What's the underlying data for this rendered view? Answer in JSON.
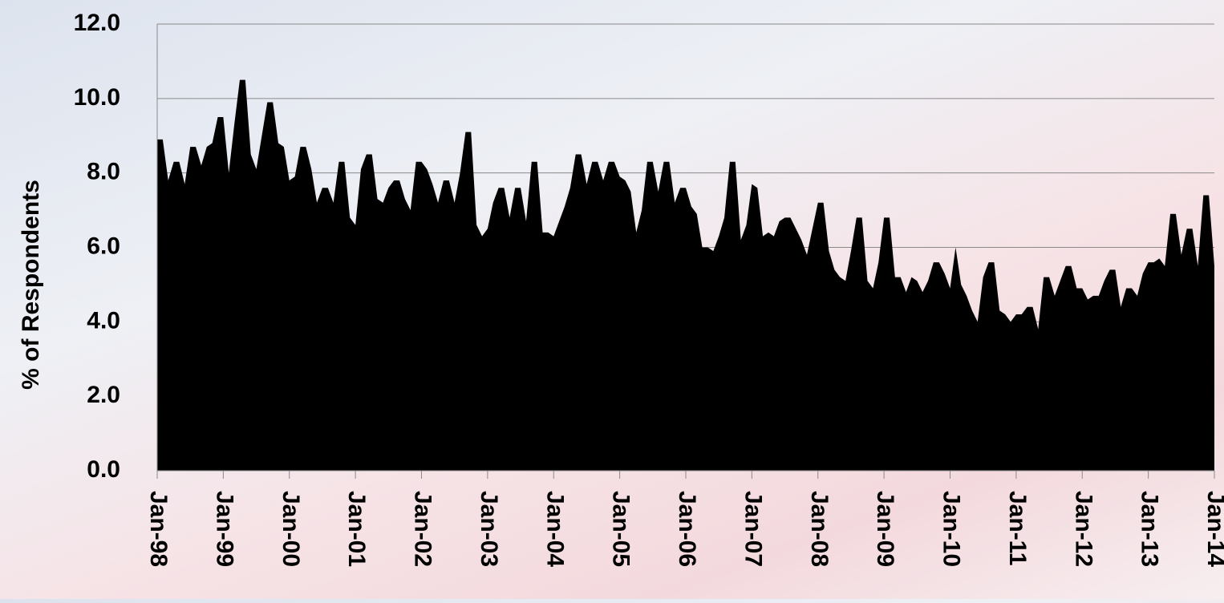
{
  "chart_data": {
    "type": "area",
    "y_label": "% of Respondents",
    "color": "#000000",
    "grid": true,
    "ylim": [
      0,
      12
    ],
    "yticks": [
      {
        "value": 0,
        "label": "0.0"
      },
      {
        "value": 2,
        "label": "2.0"
      },
      {
        "value": 4,
        "label": "4.0"
      },
      {
        "value": 6,
        "label": "6.0"
      },
      {
        "value": 8,
        "label": "8.0"
      },
      {
        "value": 10,
        "label": "10.0"
      },
      {
        "value": 12,
        "label": "12.0"
      }
    ],
    "categories": [
      "Jan-98",
      null,
      null,
      null,
      null,
      null,
      null,
      null,
      null,
      null,
      null,
      null,
      "Jan-99",
      null,
      null,
      null,
      null,
      null,
      null,
      null,
      null,
      null,
      null,
      null,
      "Jan-00",
      null,
      null,
      null,
      null,
      null,
      null,
      null,
      null,
      null,
      null,
      null,
      "Jan-01",
      null,
      null,
      null,
      null,
      null,
      null,
      null,
      null,
      null,
      null,
      null,
      "Jan-02",
      null,
      null,
      null,
      null,
      null,
      null,
      null,
      null,
      null,
      null,
      null,
      "Jan-03",
      null,
      null,
      null,
      null,
      null,
      null,
      null,
      null,
      null,
      null,
      null,
      "Jan-04",
      null,
      null,
      null,
      null,
      null,
      null,
      null,
      null,
      null,
      null,
      null,
      "Jan-05",
      null,
      null,
      null,
      null,
      null,
      null,
      null,
      null,
      null,
      null,
      null,
      "Jan-06",
      null,
      null,
      null,
      null,
      null,
      null,
      null,
      null,
      null,
      null,
      null,
      "Jan-07",
      null,
      null,
      null,
      null,
      null,
      null,
      null,
      null,
      null,
      null,
      null,
      "Jan-08",
      null,
      null,
      null,
      null,
      null,
      null,
      null,
      null,
      null,
      null,
      null,
      "Jan-09",
      null,
      null,
      null,
      null,
      null,
      null,
      null,
      null,
      null,
      null,
      null,
      "Jan-10",
      null,
      null,
      null,
      null,
      null,
      null,
      null,
      null,
      null,
      null,
      null,
      "Jan-11",
      null,
      null,
      null,
      null,
      null,
      null,
      null,
      null,
      null,
      null,
      null,
      "Jan-12",
      null,
      null,
      null,
      null,
      null,
      null,
      null,
      null,
      null,
      null,
      null,
      "Jan-13",
      null,
      null,
      null,
      null,
      null,
      null,
      null,
      null,
      null,
      null,
      null,
      "Jan-14"
    ],
    "values": [
      8.9,
      8.9,
      7.8,
      8.3,
      8.3,
      7.7,
      8.7,
      8.7,
      8.2,
      8.7,
      8.8,
      9.5,
      9.5,
      8.0,
      9.3,
      10.5,
      10.5,
      8.5,
      8.1,
      9.0,
      9.9,
      9.9,
      8.8,
      8.7,
      7.8,
      7.9,
      8.7,
      8.7,
      8.1,
      7.2,
      7.6,
      7.6,
      7.2,
      8.3,
      8.3,
      6.8,
      6.6,
      8.1,
      8.5,
      8.5,
      7.3,
      7.2,
      7.6,
      7.8,
      7.8,
      7.3,
      7.0,
      8.3,
      8.3,
      8.1,
      7.7,
      7.2,
      7.8,
      7.8,
      7.2,
      8.0,
      9.1,
      9.1,
      6.6,
      6.3,
      6.5,
      7.2,
      7.6,
      7.6,
      6.8,
      7.6,
      7.6,
      6.7,
      8.3,
      8.3,
      6.4,
      6.4,
      6.3,
      6.7,
      7.1,
      7.6,
      8.5,
      8.5,
      7.7,
      8.3,
      8.3,
      7.8,
      8.3,
      8.3,
      7.9,
      7.8,
      7.5,
      6.4,
      7.0,
      8.3,
      8.3,
      7.5,
      8.3,
      8.3,
      7.2,
      7.6,
      7.6,
      7.1,
      6.9,
      6.0,
      6.0,
      5.9,
      6.3,
      6.8,
      8.3,
      8.3,
      6.2,
      6.6,
      7.7,
      7.6,
      6.3,
      6.4,
      6.3,
      6.7,
      6.8,
      6.8,
      6.5,
      6.2,
      5.8,
      6.5,
      7.2,
      7.2,
      5.9,
      5.4,
      5.2,
      5.1,
      5.9,
      6.8,
      6.8,
      5.1,
      4.9,
      5.6,
      6.8,
      6.8,
      5.2,
      5.2,
      4.8,
      5.2,
      5.1,
      4.8,
      5.1,
      5.6,
      5.6,
      5.3,
      4.9,
      6.0,
      5.0,
      4.7,
      4.3,
      4.0,
      5.2,
      5.6,
      5.6,
      4.3,
      4.2,
      4.0,
      4.2,
      4.2,
      4.4,
      4.4,
      3.8,
      5.2,
      5.2,
      4.7,
      5.1,
      5.5,
      5.5,
      4.9,
      4.9,
      4.6,
      4.7,
      4.7,
      5.1,
      5.4,
      5.4,
      4.4,
      4.9,
      4.9,
      4.7,
      5.3,
      5.6,
      5.6,
      5.7,
      5.5,
      6.9,
      6.9,
      5.8,
      6.5,
      6.5,
      5.5,
      7.4,
      7.4,
      5.5
    ]
  }
}
